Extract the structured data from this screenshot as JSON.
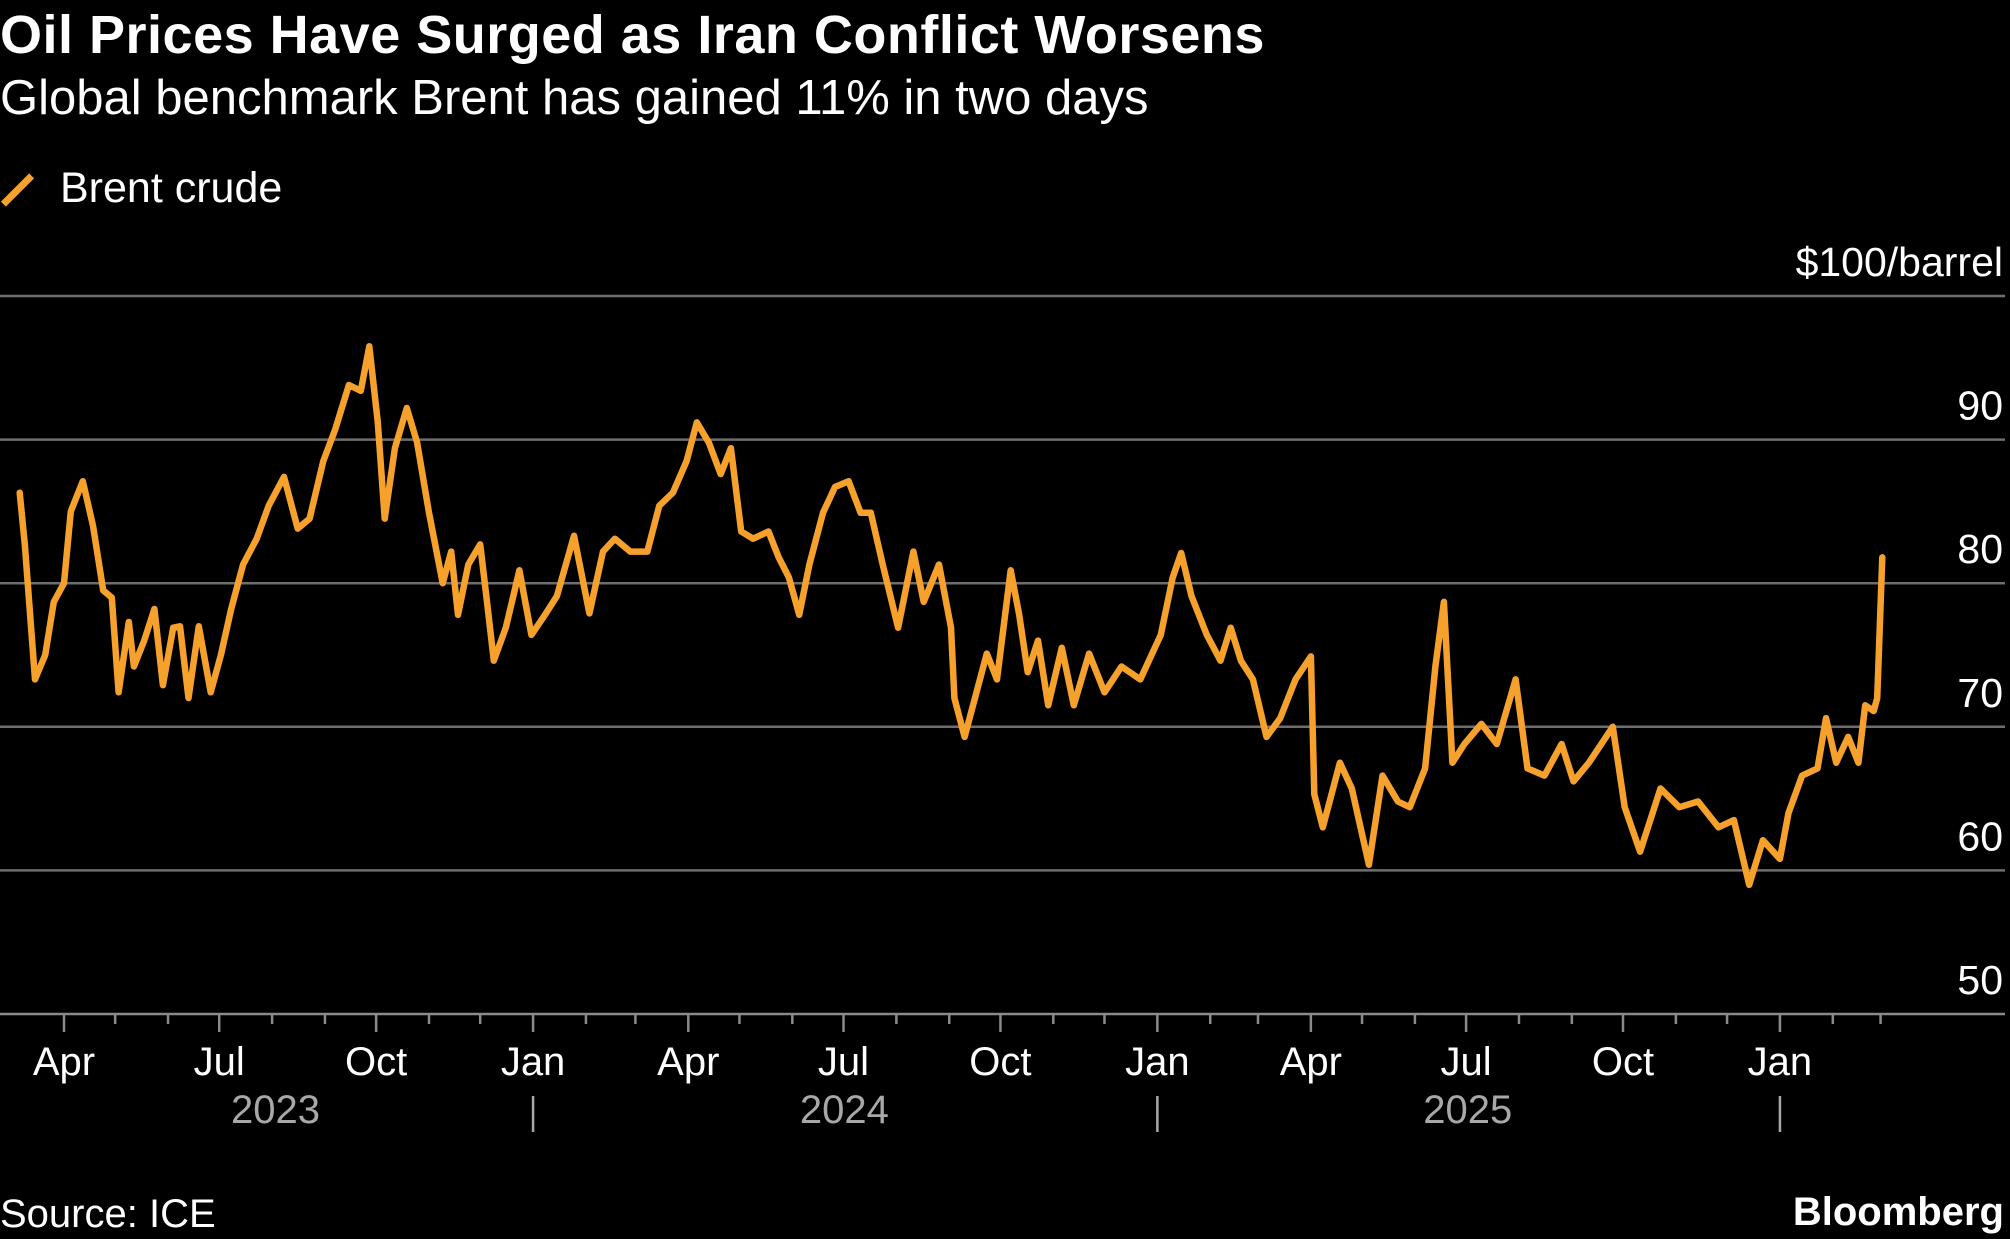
{
  "title": "Oil Prices Have Surged as Iran Conflict Worsens",
  "subtitle": "Global benchmark Brent has gained 11% in two days",
  "source": "Source: ICE",
  "brand": "Bloomberg",
  "chart_data": {
    "type": "line",
    "title": "Oil Prices Have Surged as Iran Conflict Worsens",
    "subtitle": "Global benchmark Brent has gained 11% in two days",
    "xlabel": "",
    "ylabel": "$100/barrel",
    "ylim": [
      50,
      100
    ],
    "xlim": [
      "2023-03-06",
      "2026-03-20"
    ],
    "grid": "horizontal",
    "legend_position": "top-left",
    "y_ticks": [
      {
        "value": 100,
        "label": "$100/barrel"
      },
      {
        "value": 90,
        "label": "90"
      },
      {
        "value": 80,
        "label": "80"
      },
      {
        "value": 70,
        "label": "70"
      },
      {
        "value": 60,
        "label": "60"
      },
      {
        "value": 50,
        "label": "50"
      }
    ],
    "x_ticks": [
      {
        "date": "2023-04-01",
        "label": "Apr"
      },
      {
        "date": "2023-07-01",
        "label": "Jul"
      },
      {
        "date": "2023-10-01",
        "label": "Oct"
      },
      {
        "date": "2024-01-01",
        "label": "Jan"
      },
      {
        "date": "2024-04-01",
        "label": "Apr"
      },
      {
        "date": "2024-07-01",
        "label": "Jul"
      },
      {
        "date": "2024-10-01",
        "label": "Oct"
      },
      {
        "date": "2025-01-01",
        "label": "Jan"
      },
      {
        "date": "2025-04-01",
        "label": "Apr"
      },
      {
        "date": "2025-07-01",
        "label": "Jul"
      },
      {
        "date": "2025-10-01",
        "label": "Oct"
      },
      {
        "date": "2026-01-01",
        "label": "Jan"
      }
    ],
    "year_labels": [
      "2023",
      "2024",
      "2025"
    ],
    "colors": {
      "series": "#f7a12d",
      "grid": "#6e6e6e",
      "year_label": "#a8a8a8",
      "background": "#000000"
    },
    "series": [
      {
        "name": "Brent crude",
        "x": [
          "2023-03-06",
          "2023-03-09",
          "2023-03-15",
          "2023-03-21",
          "2023-03-26",
          "2023-04-01",
          "2023-04-05",
          "2023-04-12",
          "2023-04-18",
          "2023-04-24",
          "2023-04-29",
          "2023-05-03",
          "2023-05-09",
          "2023-05-12",
          "2023-05-18",
          "2023-05-24",
          "2023-05-29",
          "2023-06-04",
          "2023-06-08",
          "2023-06-13",
          "2023-06-19",
          "2023-06-26",
          "2023-07-02",
          "2023-07-08",
          "2023-07-15",
          "2023-07-23",
          "2023-07-30",
          "2023-08-08",
          "2023-08-16",
          "2023-08-23",
          "2023-08-31",
          "2023-09-07",
          "2023-09-15",
          "2023-09-22",
          "2023-09-27",
          "2023-10-02",
          "2023-10-06",
          "2023-10-12",
          "2023-10-19",
          "2023-10-25",
          "2023-11-01",
          "2023-11-09",
          "2023-11-14",
          "2023-11-18",
          "2023-11-24",
          "2023-12-01",
          "2023-12-05",
          "2023-12-09",
          "2023-12-16",
          "2023-12-24",
          "2023-12-31",
          "2024-01-08",
          "2024-01-15",
          "2024-01-25",
          "2024-02-03",
          "2024-02-11",
          "2024-02-18",
          "2024-02-27",
          "2024-03-08",
          "2024-03-15",
          "2024-03-23",
          "2024-03-31",
          "2024-04-06",
          "2024-04-13",
          "2024-04-20",
          "2024-04-26",
          "2024-05-02",
          "2024-05-09",
          "2024-05-18",
          "2024-05-24",
          "2024-05-30",
          "2024-06-05",
          "2024-06-11",
          "2024-06-19",
          "2024-06-26",
          "2024-07-04",
          "2024-07-11",
          "2024-07-17",
          "2024-07-24",
          "2024-08-02",
          "2024-08-11",
          "2024-08-17",
          "2024-08-26",
          "2024-09-02",
          "2024-09-04",
          "2024-09-10",
          "2024-09-17",
          "2024-09-23",
          "2024-09-29",
          "2024-10-07",
          "2024-10-12",
          "2024-10-17",
          "2024-10-23",
          "2024-10-29",
          "2024-11-06",
          "2024-11-13",
          "2024-11-22",
          "2024-12-01",
          "2024-12-11",
          "2024-12-22",
          "2025-01-03",
          "2025-01-10",
          "2025-01-15",
          "2025-01-21",
          "2025-01-30",
          "2025-02-07",
          "2025-02-13",
          "2025-02-19",
          "2025-02-26",
          "2025-03-06",
          "2025-03-14",
          "2025-03-23",
          "2025-04-01",
          "2025-04-03",
          "2025-04-08",
          "2025-04-18",
          "2025-04-25",
          "2025-05-05",
          "2025-05-13",
          "2025-05-22",
          "2025-05-29",
          "2025-06-07",
          "2025-06-13",
          "2025-06-18",
          "2025-06-23",
          "2025-06-30",
          "2025-07-10",
          "2025-07-19",
          "2025-07-30",
          "2025-08-06",
          "2025-08-16",
          "2025-08-26",
          "2025-09-02",
          "2025-09-11",
          "2025-09-25",
          "2025-10-02",
          "2025-10-11",
          "2025-10-23",
          "2025-11-03",
          "2025-11-14",
          "2025-11-26",
          "2025-12-05",
          "2025-12-14",
          "2025-12-22",
          "2026-01-01",
          "2026-01-06",
          "2026-01-14",
          "2026-01-23",
          "2026-01-28",
          "2026-02-03",
          "2026-02-10",
          "2026-02-16",
          "2026-02-20",
          "2026-02-25",
          "2026-02-27",
          "2026-03-02"
        ],
        "y": [
          86.3,
          82.7,
          73.3,
          75.0,
          78.7,
          80.0,
          85.0,
          87.1,
          84.0,
          79.5,
          79.0,
          72.4,
          77.3,
          74.2,
          76.0,
          78.2,
          72.9,
          76.9,
          77.0,
          72.0,
          77.0,
          72.4,
          75.0,
          78.2,
          81.3,
          83.1,
          85.4,
          87.4,
          83.8,
          84.5,
          88.5,
          90.7,
          93.8,
          93.4,
          96.5,
          91.2,
          84.5,
          89.4,
          92.2,
          89.8,
          84.9,
          80.0,
          82.2,
          77.8,
          81.3,
          82.7,
          78.7,
          74.6,
          76.9,
          80.9,
          76.4,
          77.8,
          79.1,
          83.3,
          77.9,
          82.2,
          83.1,
          82.2,
          82.2,
          85.4,
          86.3,
          88.5,
          91.2,
          89.8,
          87.6,
          89.4,
          83.6,
          83.1,
          83.6,
          81.8,
          80.4,
          77.8,
          81.3,
          84.9,
          86.7,
          87.1,
          84.9,
          84.9,
          81.3,
          76.9,
          82.2,
          78.7,
          81.3,
          76.9,
          72.0,
          69.3,
          72.4,
          75.1,
          73.3,
          80.9,
          77.8,
          73.8,
          76.0,
          71.5,
          75.5,
          71.5,
          75.1,
          72.4,
          74.2,
          73.3,
          76.4,
          80.4,
          82.1,
          79.1,
          76.4,
          74.6,
          76.9,
          74.6,
          73.3,
          69.3,
          70.6,
          73.3,
          74.9,
          65.3,
          63.0,
          67.5,
          65.7,
          60.4,
          66.6,
          64.8,
          64.4,
          67.1,
          74.2,
          78.7,
          67.5,
          68.8,
          70.2,
          68.8,
          73.3,
          67.1,
          66.6,
          68.8,
          66.2,
          67.5,
          70.0,
          64.4,
          61.3,
          65.7,
          64.4,
          64.8,
          63.0,
          63.5,
          59.0,
          62.1,
          60.8,
          64.0,
          66.6,
          67.1,
          70.6,
          67.5,
          69.3,
          67.5,
          71.5,
          71.1,
          72.0,
          81.8
        ]
      }
    ]
  }
}
